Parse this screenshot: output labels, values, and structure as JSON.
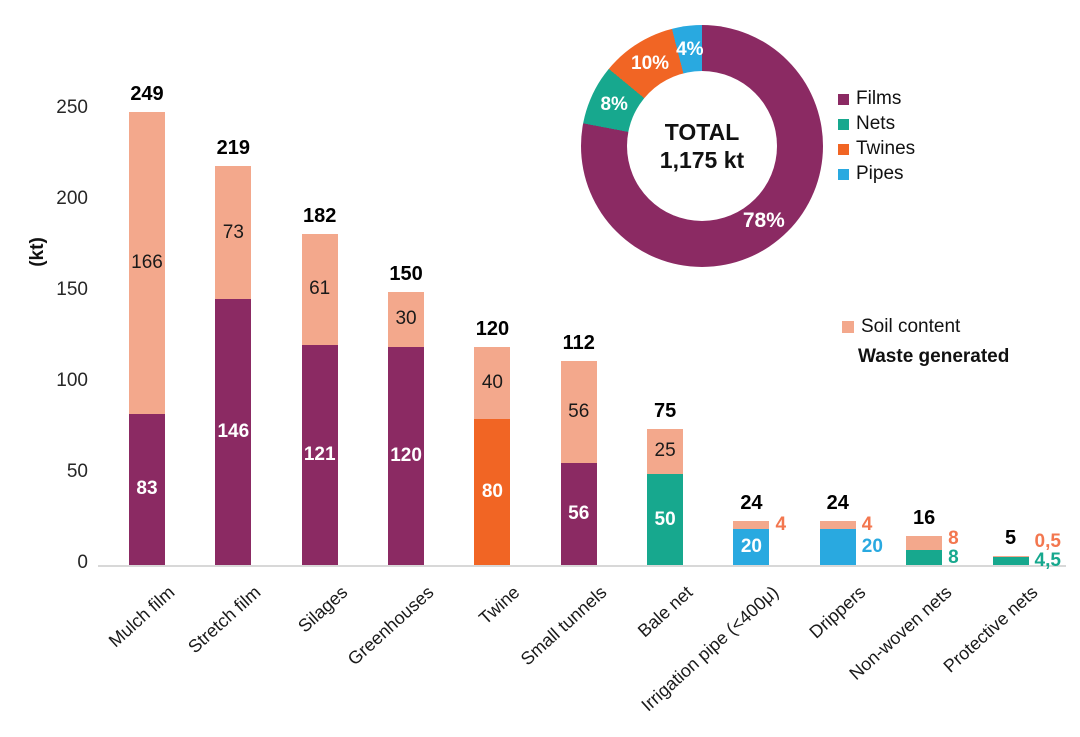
{
  "colors": {
    "films": "#8B2A63",
    "nets": "#17A88E",
    "twines": "#F16524",
    "pipes": "#29A9E0",
    "soil": "#F3A88C",
    "soil_out_label": "#F3774F",
    "axis_line": "#D8D8D8",
    "text": "#1A1A1A"
  },
  "chart_data": [
    {
      "type": "bar",
      "stacked": true,
      "title": "",
      "xlabel": "",
      "ylabel": "(kt)",
      "ylim": [
        0,
        250
      ],
      "yticks": [
        0,
        50,
        100,
        150,
        200,
        250
      ],
      "grid": false,
      "legend_position": "right",
      "legend": [
        {
          "name": "Soil content",
          "color_key": "soil",
          "swatch": true,
          "bold": false
        },
        {
          "name": "Waste generated",
          "color_key": "text",
          "swatch": false,
          "bold": true
        }
      ],
      "categories": [
        "Mulch film",
        "Stretch film",
        "Silages",
        "Greenhouses",
        "Twine",
        "Small tunnels",
        "Bale net",
        "Irrigation pipe (<400μ)",
        "Drippers",
        "Non-woven nets",
        "Protective nets"
      ],
      "series_note": "waste = bottom colored segment (Waste generated), soil = top salmon segment (Soil content)",
      "bars": [
        {
          "category": "Mulch film",
          "waste": 83,
          "soil": 166,
          "total": 249,
          "waste_label": "83",
          "soil_label": "166",
          "total_label": "249",
          "waste_color_key": "films",
          "waste_label_pos": "inside",
          "soil_label_pos": "inside"
        },
        {
          "category": "Stretch film",
          "waste": 146,
          "soil": 73,
          "total": 219,
          "waste_label": "146",
          "soil_label": "73",
          "total_label": "219",
          "waste_color_key": "films",
          "waste_label_pos": "inside",
          "soil_label_pos": "inside"
        },
        {
          "category": "Silages",
          "waste": 121,
          "soil": 61,
          "total": 182,
          "waste_label": "121",
          "soil_label": "61",
          "total_label": "182",
          "waste_color_key": "films",
          "waste_label_pos": "inside",
          "soil_label_pos": "inside"
        },
        {
          "category": "Greenhouses",
          "waste": 120,
          "soil": 30,
          "total": 150,
          "waste_label": "120",
          "soil_label": "30",
          "total_label": "150",
          "waste_color_key": "films",
          "waste_label_pos": "inside",
          "soil_label_pos": "inside"
        },
        {
          "category": "Twine",
          "waste": 80,
          "soil": 40,
          "total": 120,
          "waste_label": "80",
          "soil_label": "40",
          "total_label": "120",
          "waste_color_key": "twines",
          "waste_label_pos": "inside",
          "soil_label_pos": "inside"
        },
        {
          "category": "Small tunnels",
          "waste": 56,
          "soil": 56,
          "total": 112,
          "waste_label": "56",
          "soil_label": "56",
          "total_label": "112",
          "waste_color_key": "films",
          "waste_label_pos": "inside",
          "soil_label_pos": "inside"
        },
        {
          "category": "Bale net",
          "waste": 50,
          "soil": 25,
          "total": 75,
          "waste_label": "50",
          "soil_label": "25",
          "total_label": "75",
          "waste_color_key": "nets",
          "waste_label_pos": "inside",
          "soil_label_pos": "inside"
        },
        {
          "category": "Irrigation pipe (<400μ)",
          "waste": 20,
          "soil": 4,
          "total": 24,
          "waste_label": "20",
          "soil_label": "4",
          "total_label": "24",
          "waste_color_key": "pipes",
          "waste_label_pos": "inside",
          "soil_label_pos": "outside"
        },
        {
          "category": "Drippers",
          "waste": 20,
          "soil": 4,
          "total": 24,
          "waste_label": "20",
          "soil_label": "4",
          "total_label": "24",
          "waste_color_key": "pipes",
          "waste_label_pos": "outside",
          "soil_label_pos": "outside"
        },
        {
          "category": "Non-woven nets",
          "waste": 8,
          "soil": 8,
          "total": 16,
          "waste_label": "8",
          "soil_label": "8",
          "total_label": "16",
          "waste_color_key": "nets",
          "waste_label_pos": "outside",
          "soil_label_pos": "outside"
        },
        {
          "category": "Protective nets",
          "waste": 4.5,
          "soil": 0.5,
          "total": 5,
          "waste_label": "4,5",
          "soil_label": "0,5",
          "total_label": "5",
          "waste_color_key": "nets",
          "waste_label_pos": "outside",
          "soil_label_pos": "outside"
        }
      ]
    },
    {
      "type": "pie",
      "donut": true,
      "center_text": [
        "TOTAL",
        "1,175 kt"
      ],
      "legend_position": "right",
      "segments": [
        {
          "name": "Films",
          "pct": 78,
          "label": "78%",
          "color_key": "films"
        },
        {
          "name": "Nets",
          "pct": 8,
          "label": "8%",
          "color_key": "nets"
        },
        {
          "name": "Twines",
          "pct": 10,
          "label": "10%",
          "color_key": "twines"
        },
        {
          "name": "Pipes",
          "pct": 4,
          "label": "4%",
          "color_key": "pipes"
        }
      ]
    }
  ]
}
